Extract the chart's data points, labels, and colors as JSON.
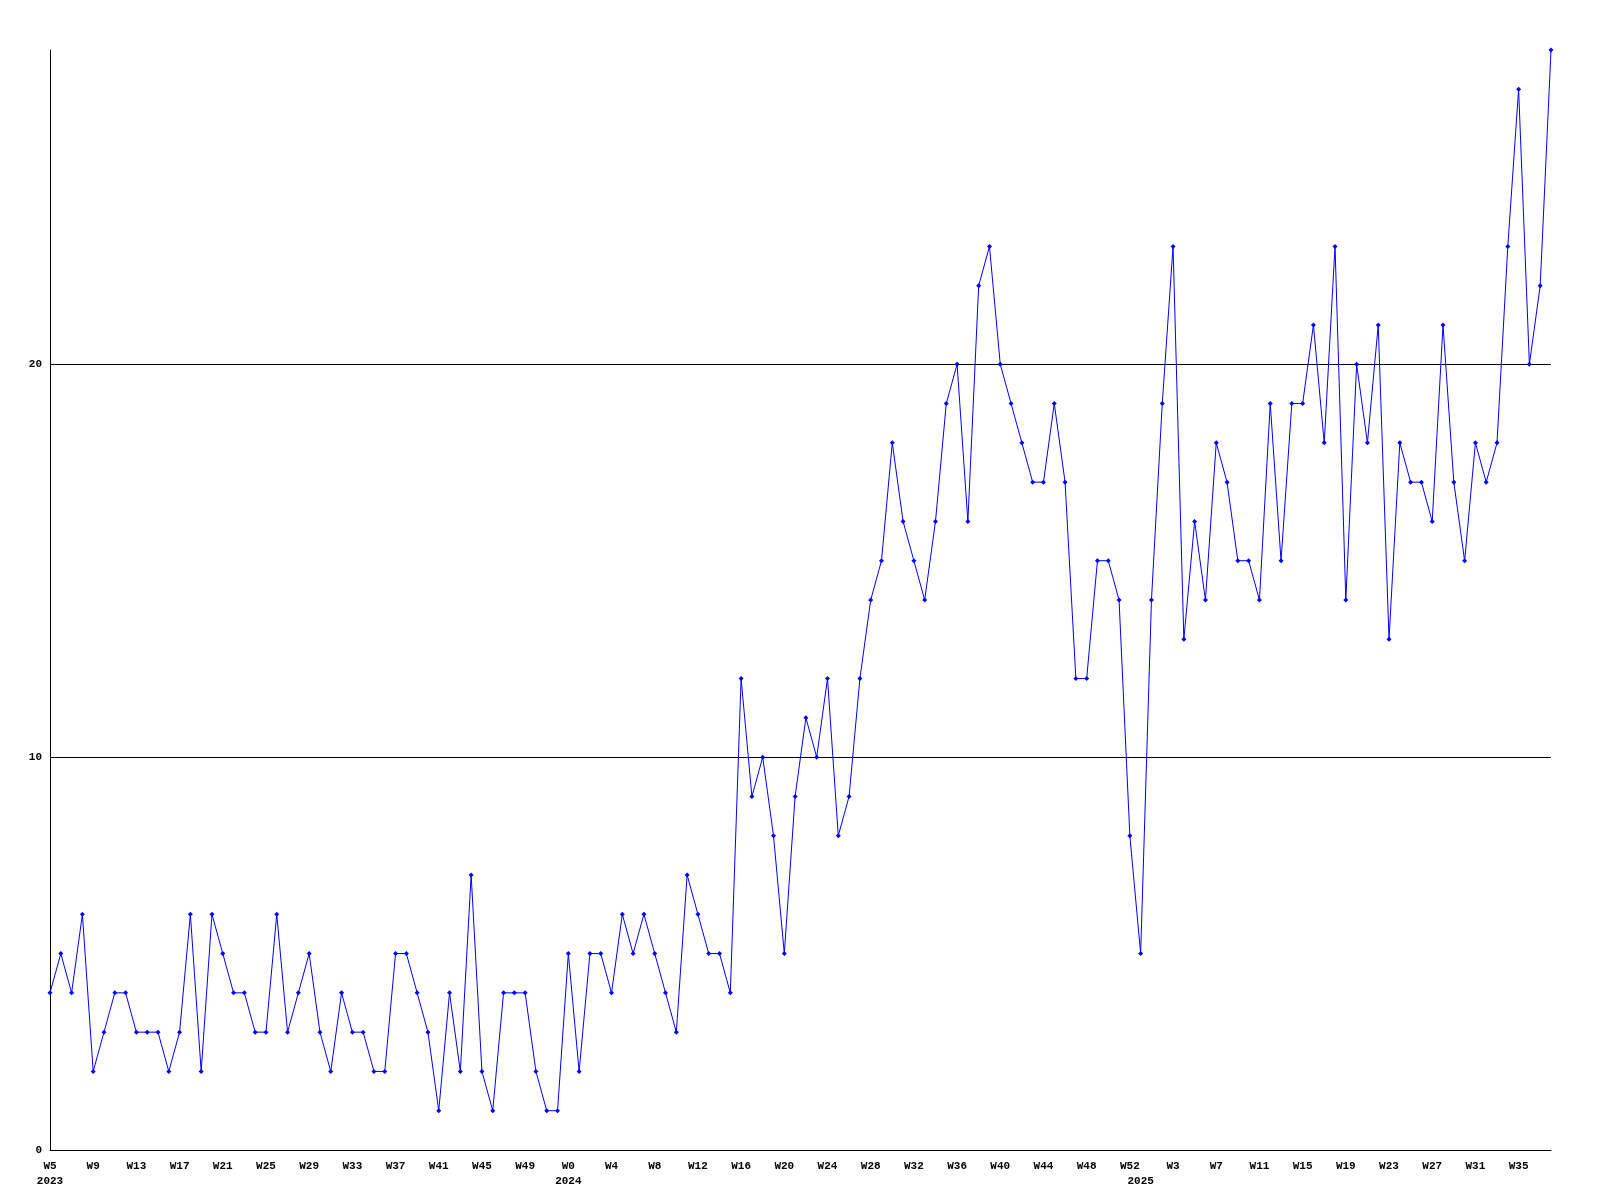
{
  "chart_data": {
    "type": "line",
    "categories": [
      "W5\n2023",
      null,
      null,
      null,
      "W9",
      null,
      null,
      null,
      "W13",
      null,
      null,
      null,
      "W17",
      null,
      null,
      null,
      "W21",
      null,
      null,
      null,
      "W25",
      null,
      null,
      null,
      "W29",
      null,
      null,
      null,
      "W33",
      null,
      null,
      null,
      "W37",
      null,
      null,
      null,
      "W41",
      null,
      null,
      null,
      "W45",
      null,
      null,
      null,
      "W49",
      null,
      null,
      null,
      "W0\n2024",
      null,
      null,
      null,
      "W4",
      null,
      null,
      null,
      "W8",
      null,
      null,
      null,
      "W12",
      null,
      null,
      null,
      "W16",
      null,
      null,
      null,
      "W20",
      null,
      null,
      null,
      "W24",
      null,
      null,
      null,
      "W28",
      null,
      null,
      null,
      "W32",
      null,
      null,
      null,
      "W36",
      null,
      null,
      null,
      "W40",
      null,
      null,
      null,
      "W44",
      null,
      null,
      null,
      "W48",
      null,
      null,
      null,
      "W52",
      "\n2025",
      null,
      null,
      "W3",
      null,
      null,
      null,
      "W7",
      null,
      null,
      null,
      "W11",
      null,
      null,
      null,
      "W15",
      null,
      null,
      null,
      "W19",
      null,
      null,
      null,
      "W23",
      null,
      null,
      null,
      "W27",
      null,
      null,
      null,
      "W31",
      null,
      null,
      null,
      "W35",
      null,
      null,
      null
    ],
    "series": [
      {
        "color": "#0000ff",
        "values": [
          4,
          5,
          4,
          6,
          2,
          3,
          4,
          4,
          3,
          3,
          3,
          2,
          3,
          6,
          2,
          6,
          5,
          4,
          4,
          3,
          3,
          6,
          3,
          4,
          5,
          3,
          2,
          4,
          3,
          3,
          2,
          2,
          5,
          5,
          4,
          3,
          1,
          4,
          2,
          7,
          2,
          1,
          4,
          4,
          4,
          2,
          1,
          1,
          5,
          2,
          5,
          5,
          4,
          6,
          5,
          6,
          5,
          4,
          3,
          7,
          6,
          5,
          5,
          4,
          12,
          9,
          10,
          8,
          5,
          9,
          11,
          10,
          12,
          8,
          9,
          12,
          14,
          15,
          18,
          16,
          15,
          14,
          16,
          19,
          20,
          16,
          22,
          23,
          20,
          19,
          18,
          17,
          17,
          19,
          17,
          12,
          12,
          15,
          15,
          14,
          8,
          5,
          14,
          19,
          23,
          13,
          16,
          14,
          18,
          17,
          15,
          15,
          14,
          19,
          15,
          19,
          19,
          21,
          18,
          23,
          14,
          20,
          18,
          21,
          13,
          18,
          17,
          17,
          16,
          21,
          17,
          15,
          18,
          17,
          18,
          23,
          27,
          20,
          22,
          28
        ]
      }
    ],
    "ylim": [
      0,
      28
    ],
    "yticks": [
      0,
      10,
      20
    ],
    "grid": "y",
    "marker": "diamond",
    "line_style": "solid"
  }
}
